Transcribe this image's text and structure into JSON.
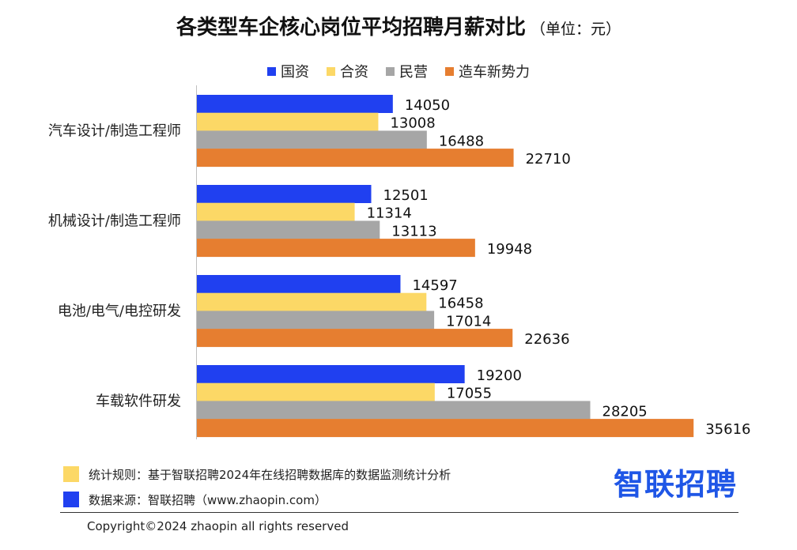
{
  "title": "各类型车企核心岗位平均招聘月薪对比",
  "unit": "（单位：元）",
  "colors": {
    "国资": "#2040f0",
    "合资": "#fcd866",
    "民营": "#a6a6a6",
    "造车新势力": "#e67e30",
    "axis": "#bfbfbf",
    "brand": "#1f56e6"
  },
  "chart_data": {
    "type": "bar",
    "orientation": "horizontal",
    "categories": [
      "汽车设计/制造工程师",
      "机械设计/制造工程师",
      "电池/电气/电控研发",
      "车载软件研发"
    ],
    "series": [
      {
        "name": "国资",
        "values": [
          14050,
          12501,
          14597,
          19200
        ]
      },
      {
        "name": "合资",
        "values": [
          13008,
          11314,
          16458,
          17055
        ]
      },
      {
        "name": "民营",
        "values": [
          16488,
          13113,
          17014,
          28205
        ]
      },
      {
        "name": "造车新势力",
        "values": [
          22710,
          19948,
          22636,
          35616
        ]
      }
    ],
    "data_labels": true,
    "legend_position": "top",
    "grid": false,
    "xlim": [
      0,
      36000
    ]
  },
  "notes": [
    {
      "label": "统计规则：基于智联招聘2024年在线招聘数据库的数据监测统计分析",
      "color": "#fcd866"
    },
    {
      "label": "数据来源：智联招聘（www.zhaopin.com）",
      "color": "#2040f0"
    }
  ],
  "brand": "智联招聘",
  "copyright": "Copyright©2024 zhaopin all rights reserved"
}
